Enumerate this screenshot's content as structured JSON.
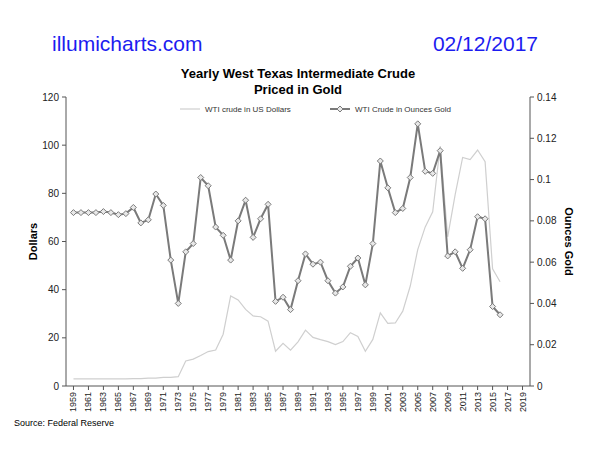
{
  "header": {
    "site": "illumicharts.com",
    "date": "02/12/2017"
  },
  "chart_data": {
    "type": "line",
    "title": "Yearly West Texas Intermediate Crude\nPriced in Gold",
    "ylabel": "Dollars",
    "y2label": "Ounces Gold",
    "source": "Source: Federal Reserve",
    "legend": "top",
    "grid": false,
    "x": [
      1959,
      1960,
      1961,
      1962,
      1963,
      1964,
      1965,
      1966,
      1967,
      1968,
      1969,
      1970,
      1971,
      1972,
      1973,
      1974,
      1975,
      1976,
      1977,
      1978,
      1979,
      1980,
      1981,
      1982,
      1983,
      1984,
      1985,
      1986,
      1987,
      1988,
      1989,
      1990,
      1991,
      1992,
      1993,
      1994,
      1995,
      1996,
      1997,
      1998,
      1999,
      2000,
      2001,
      2002,
      2003,
      2004,
      2005,
      2006,
      2007,
      2008,
      2009,
      2010,
      2011,
      2012,
      2013,
      2014,
      2015,
      2016
    ],
    "xlim": [
      1958,
      2020
    ],
    "xticks": [
      1959,
      1961,
      1963,
      1965,
      1967,
      1969,
      1971,
      1973,
      1975,
      1977,
      1979,
      1981,
      1983,
      1985,
      1987,
      1989,
      1991,
      1993,
      1995,
      1997,
      1999,
      2001,
      2003,
      2005,
      2007,
      2009,
      2011,
      2013,
      2015,
      2017,
      2019
    ],
    "ylim": [
      0,
      120
    ],
    "yticks": [
      0,
      20,
      40,
      60,
      80,
      100,
      120
    ],
    "y2lim": [
      0,
      0.14
    ],
    "y2ticks": [
      0,
      0.02,
      0.04,
      0.06,
      0.08,
      0.1,
      0.12,
      0.14
    ],
    "series": [
      {
        "name": "WTI crude in US Dollars",
        "color": "#cfcfcf",
        "line_style": "solid",
        "values": [
          2.97,
          2.97,
          2.97,
          2.97,
          2.97,
          2.97,
          2.92,
          2.94,
          3.07,
          3.07,
          3.3,
          3.3,
          3.56,
          3.56,
          3.87,
          10.37,
          11.16,
          12.65,
          14.3,
          14.95,
          21.5,
          37.4,
          35.75,
          31.83,
          29.08,
          28.75,
          26.92,
          14.44,
          17.75,
          14.87,
          18.33,
          23.19,
          20.2,
          19.25,
          18.43,
          17.2,
          18.43,
          22.12,
          20.61,
          14.42,
          19.34,
          30.38,
          25.98,
          26.18,
          31.08,
          41.51,
          56.64,
          66.05,
          72.34,
          99.67,
          61.95,
          79.48,
          94.88,
          94.05,
          97.98,
          93.17,
          48.66,
          43.29
        ]
      },
      {
        "name": "WTI Crude in Ounces Gold",
        "color": "#7a7a7a",
        "marker": "diamond",
        "line_style": "solid",
        "axis": "y2",
        "values": [
          0.084,
          0.084,
          0.084,
          0.084,
          0.0845,
          0.084,
          0.083,
          0.0835,
          0.0865,
          0.079,
          0.0805,
          0.093,
          0.0875,
          0.061,
          0.04,
          0.065,
          0.069,
          0.101,
          0.097,
          0.077,
          0.073,
          0.061,
          0.08,
          0.09,
          0.072,
          0.081,
          0.088,
          0.041,
          0.043,
          0.037,
          0.051,
          0.064,
          0.059,
          0.06,
          0.051,
          0.045,
          0.048,
          0.058,
          0.062,
          0.049,
          0.069,
          0.109,
          0.096,
          0.084,
          0.086,
          0.101,
          0.127,
          0.104,
          0.103,
          0.114,
          0.063,
          0.065,
          0.057,
          0.066,
          0.082,
          0.081,
          0.0385,
          0.0345
        ]
      }
    ]
  }
}
